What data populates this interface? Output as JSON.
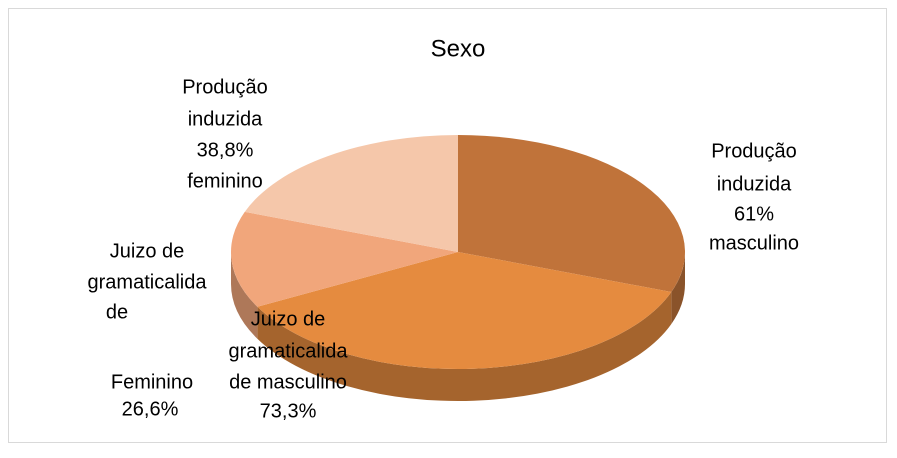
{
  "chart_data": {
    "type": "pie3d",
    "title": "Sexo",
    "categories": [
      [
        "Produção",
        "induzida"
      ],
      [
        "Juizo de",
        "gramaticalida",
        "de masculino"
      ],
      [
        "Juizo de",
        "gramaticalida",
        "de",
        "Feminino"
      ],
      [
        "Produção",
        "induzida"
      ]
    ],
    "category_suffix": [
      [
        "masculino"
      ],
      [],
      [],
      [
        "feminino"
      ]
    ],
    "values": [
      61,
      73.3,
      26.6,
      38.8
    ],
    "value_labels": [
      "61%",
      "73,3%",
      "26,6%",
      "38,8%"
    ],
    "colors": [
      "#c0733a",
      "#e58b3f",
      "#f1a67b",
      "#f5c7aa"
    ]
  }
}
